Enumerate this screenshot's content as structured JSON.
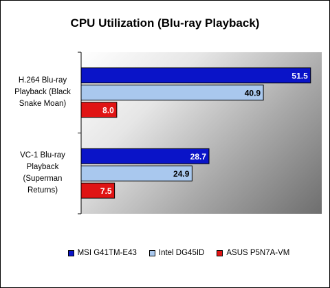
{
  "chart_data": {
    "type": "bar",
    "orientation": "horizontal",
    "title": "CPU Utilization (Blu-ray Playback)",
    "categories": [
      "H.264 Blu-ray Playback (Black Snake Moan)",
      "VC-1 Blu-ray Playback (Superman Returns)"
    ],
    "category_lines": [
      [
        "H.264 Blu-ray",
        "Playback (Black",
        "Snake Moan)"
      ],
      [
        "VC-1 Blu-ray",
        "Playback",
        "(Superman",
        "Returns)"
      ]
    ],
    "series": [
      {
        "name": "MSI G41TM-E43",
        "color": "#0a14c8",
        "label_color": "#ffffff",
        "values": [
          51.5,
          28.7
        ]
      },
      {
        "name": "Intel DG45ID",
        "color": "#a9c8ee",
        "label_color": "#000000",
        "values": [
          40.9,
          24.9
        ]
      },
      {
        "name": "ASUS P5N7A-VM",
        "color": "#e01414",
        "label_color": "#ffffff",
        "values": [
          8.0,
          7.5
        ]
      }
    ],
    "xlim": [
      0,
      54
    ],
    "xlabel": "",
    "ylabel": "",
    "grid": false,
    "legend_position": "bottom",
    "data_labels": true
  }
}
